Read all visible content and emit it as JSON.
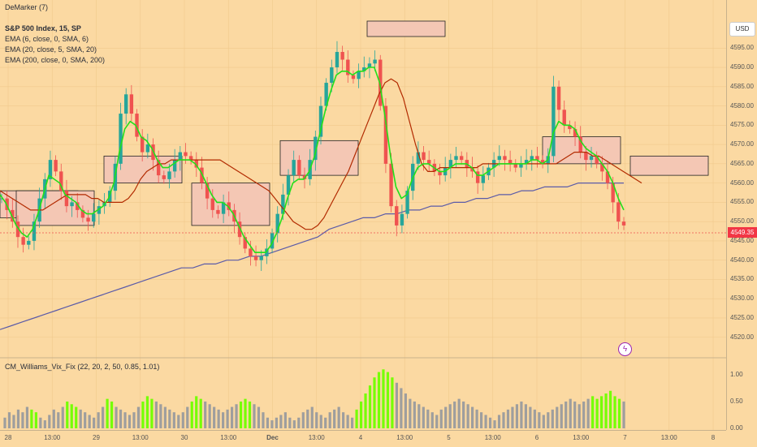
{
  "legend": {
    "top": "DeMarker (7)",
    "symbol": "S&P 500 Index, 15, SP",
    "ema1": "EMA (6, close, 0, SMA, 6)",
    "ema2": "EMA (20, close, 5, SMA, 20)",
    "ema3": "EMA (200, close, 0, SMA, 200)",
    "indicator": "CM_Williams_Vix_Fix (22, 20, 2, 50, 0.85, 1.01)"
  },
  "currency": "USD",
  "last_price": "4549.35",
  "colors": {
    "up": "#26a69a",
    "down": "#ef5350",
    "ema6": "#22e01a",
    "ema20": "#b22a00",
    "ema200": "#5b5ba8",
    "vix_gray": "#9e9e9e",
    "vix_green": "#76ff03",
    "box_fill": "#f4c7b4"
  },
  "chart_data": {
    "type": "candlestick",
    "price_axis": {
      "min": 4517,
      "max": 4602,
      "ticks": [
        "4595.00",
        "4590.00",
        "4585.00",
        "4580.00",
        "4575.00",
        "4570.00",
        "4565.00",
        "4560.00",
        "4555.00",
        "4550.00",
        "4545.00",
        "4540.00",
        "4535.00",
        "4530.00",
        "4525.00",
        "4520.00"
      ]
    },
    "indicator_axis": {
      "min": 0,
      "max": 1.15,
      "ticks": [
        "1.00",
        "0.50",
        "0.00"
      ]
    },
    "time_axis": {
      "labels": [
        "28",
        "13:00",
        "29",
        "13:00",
        "30",
        "13:00",
        "Dec",
        "13:00",
        "4",
        "13:00",
        "5",
        "13:00",
        "6",
        "13:00",
        "7",
        "13:00",
        "8"
      ]
    },
    "close_path": [
      4556,
      4553,
      4550,
      4546,
      4544,
      4545,
      4550,
      4556,
      4561,
      4566,
      4563,
      4558,
      4554,
      4555,
      4553,
      4551,
      4550,
      4552,
      4554,
      4555,
      4558,
      4565,
      4578,
      4583,
      4578,
      4572,
      4568,
      4570,
      4566,
      4562,
      4561,
      4563,
      4566,
      4568,
      4567,
      4566,
      4564,
      4560,
      4556,
      4553,
      4552,
      4555,
      4553,
      4550,
      4546,
      4543,
      4541,
      4540,
      4541,
      4543,
      4547,
      4552,
      4557,
      4562,
      4566,
      4562,
      4561,
      4566,
      4572,
      4580,
      4586,
      4590,
      4594,
      4592,
      4588,
      4587,
      4589,
      4590,
      4591,
      4592,
      4580,
      4565,
      4554,
      4549,
      4552,
      4558,
      4565,
      4568,
      4566,
      4565,
      4563,
      4562,
      4564,
      4566,
      4567,
      4566,
      4564,
      4563,
      4560,
      4562,
      4564,
      4566,
      4567,
      4566,
      4565,
      4564,
      4565,
      4566,
      4567,
      4566,
      4565,
      4567,
      4585,
      4579,
      4575,
      4574,
      4572,
      4568,
      4566,
      4567,
      4565,
      4563,
      4560,
      4555,
      4550,
      4549
    ],
    "ema6": [
      4557,
      4555,
      4552,
      4549,
      4547,
      4546,
      4548,
      4552,
      4557,
      4562,
      4561,
      4560,
      4557,
      4556,
      4555,
      4553,
      4552,
      4552,
      4553,
      4554,
      4556,
      4560,
      4568,
      4574,
      4576,
      4575,
      4572,
      4571,
      4569,
      4566,
      4564,
      4564,
      4565,
      4566,
      4566,
      4566,
      4565,
      4563,
      4560,
      4557,
      4555,
      4555,
      4554,
      4552,
      4549,
      4546,
      4544,
      4542,
      4542,
      4542,
      4544,
      4547,
      4551,
      4556,
      4560,
      4561,
      4561,
      4563,
      4567,
      4573,
      4579,
      4584,
      4588,
      4589,
      4589,
      4588,
      4589,
      4589,
      4590,
      4590,
      4586,
      4577,
      4567,
      4559,
      4556,
      4557,
      4561,
      4564,
      4565,
      4565,
      4564,
      4563,
      4563,
      4564,
      4565,
      4565,
      4565,
      4564,
      4562,
      4562,
      4563,
      4564,
      4565,
      4565,
      4565,
      4565,
      4565,
      4565,
      4566,
      4566,
      4565,
      4566,
      4573,
      4576,
      4575,
      4575,
      4574,
      4571,
      4569,
      4568,
      4567,
      4565,
      4563,
      4560,
      4556,
      4553
    ],
    "ema20": [
      4558,
      4557,
      4556,
      4555,
      4554,
      4553,
      4553,
      4553,
      4554,
      4555,
      4556,
      4557,
      4557,
      4557,
      4557,
      4556,
      4556,
      4555,
      4555,
      4555,
      4555,
      4556,
      4558,
      4561,
      4563,
      4564,
      4565,
      4565,
      4566,
      4566,
      4566,
      4566,
      4566,
      4566,
      4566,
      4566,
      4566,
      4565,
      4564,
      4563,
      4562,
      4561,
      4560,
      4559,
      4558,
      4556,
      4554,
      4552,
      4550,
      4549,
      4548,
      4548,
      4549,
      4551,
      4554,
      4557,
      4560,
      4563,
      4567,
      4571,
      4575,
      4579,
      4583,
      4586,
      4587,
      4586,
      4582,
      4576,
      4570,
      4565,
      4563,
      4563,
      4564,
      4564,
      4564,
      4564,
      4564,
      4564,
      4564,
      4565,
      4565,
      4565,
      4565,
      4565,
      4565,
      4565,
      4565,
      4565,
      4565,
      4565,
      4565,
      4565,
      4566,
      4567,
      4568,
      4568,
      4568,
      4567,
      4567,
      4566,
      4565,
      4564,
      4563,
      4562,
      4561,
      4560
    ],
    "ema200": [
      4522,
      4523,
      4524,
      4525,
      4526,
      4527,
      4528,
      4529,
      4530,
      4531,
      4532,
      4533,
      4534,
      4535,
      4536,
      4537,
      4538,
      4538,
      4539,
      4539,
      4540,
      4540,
      4541,
      4541,
      4542,
      4543,
      4544,
      4545,
      4546,
      4548,
      4549,
      4550,
      4551,
      4551,
      4552,
      4552,
      4553,
      4553,
      4554,
      4554,
      4555,
      4555,
      4556,
      4556,
      4557,
      4557,
      4558,
      4558,
      4559,
      4559,
      4559,
      4560,
      4560,
      4560,
      4560,
      4560
    ],
    "vix_fix": [
      0.2,
      0.3,
      0.25,
      0.35,
      0.3,
      0.4,
      0.35,
      0.3,
      0.2,
      0.15,
      0.25,
      0.35,
      0.3,
      0.4,
      0.5,
      0.45,
      0.4,
      0.35,
      0.3,
      0.25,
      0.2,
      0.3,
      0.4,
      0.55,
      0.5,
      0.4,
      0.35,
      0.3,
      0.25,
      0.3,
      0.4,
      0.5,
      0.6,
      0.55,
      0.5,
      0.45,
      0.4,
      0.35,
      0.3,
      0.25,
      0.3,
      0.4,
      0.5,
      0.6,
      0.55,
      0.5,
      0.45,
      0.4,
      0.35,
      0.3,
      0.35,
      0.4,
      0.45,
      0.5,
      0.55,
      0.5,
      0.45,
      0.4,
      0.3,
      0.2,
      0.15,
      0.2,
      0.25,
      0.3,
      0.2,
      0.15,
      0.2,
      0.3,
      0.35,
      0.4,
      0.3,
      0.25,
      0.2,
      0.3,
      0.35,
      0.4,
      0.3,
      0.25,
      0.2,
      0.35,
      0.5,
      0.65,
      0.8,
      0.95,
      1.05,
      1.1,
      1.05,
      0.95,
      0.85,
      0.75,
      0.65,
      0.55,
      0.5,
      0.45,
      0.4,
      0.35,
      0.3,
      0.25,
      0.35,
      0.4,
      0.45,
      0.5,
      0.55,
      0.5,
      0.45,
      0.4,
      0.35,
      0.3,
      0.25,
      0.2,
      0.15,
      0.25,
      0.3,
      0.35,
      0.4,
      0.45,
      0.5,
      0.45,
      0.4,
      0.35,
      0.3,
      0.25,
      0.3,
      0.35,
      0.4,
      0.45,
      0.5,
      0.55,
      0.5,
      0.45,
      0.5,
      0.55,
      0.6,
      0.55,
      0.6,
      0.65,
      0.7,
      0.6,
      0.55,
      0.5
    ],
    "vix_highlight": [
      0,
      0,
      0,
      0,
      0,
      0,
      1,
      1,
      0,
      0,
      0,
      0,
      0,
      0,
      1,
      1,
      1,
      0,
      0,
      0,
      0,
      0,
      0,
      1,
      1,
      0,
      0,
      0,
      0,
      0,
      0,
      1,
      1,
      1,
      0,
      0,
      0,
      0,
      0,
      0,
      0,
      0,
      1,
      1,
      1,
      0,
      0,
      0,
      0,
      0,
      0,
      0,
      0,
      1,
      1,
      1,
      0,
      0,
      0,
      0,
      0,
      0,
      0,
      0,
      0,
      0,
      0,
      0,
      0,
      0,
      0,
      0,
      0,
      0,
      0,
      0,
      0,
      0,
      0,
      1,
      1,
      1,
      1,
      1,
      1,
      1,
      1,
      1,
      0,
      0,
      0,
      0,
      0,
      0,
      0,
      0,
      0,
      0,
      0,
      0,
      0,
      0,
      0,
      0,
      0,
      0,
      0,
      0,
      0,
      0,
      0,
      0,
      0,
      0,
      0,
      0,
      0,
      0,
      0,
      0,
      0,
      0,
      0,
      0,
      0,
      0,
      0,
      0,
      0,
      0,
      0,
      0,
      1,
      1,
      1,
      1,
      1,
      1,
      1,
      0
    ],
    "zones": [
      [
        0,
        4551,
        4558
      ],
      [
        20,
        4549,
        4558
      ],
      [
        128,
        4560,
        4567
      ],
      [
        236,
        4549,
        4560
      ],
      [
        345,
        4562,
        4571
      ],
      [
        452,
        4598,
        4602
      ],
      [
        668,
        4565,
        4572
      ],
      [
        776,
        4562,
        4567
      ]
    ]
  }
}
